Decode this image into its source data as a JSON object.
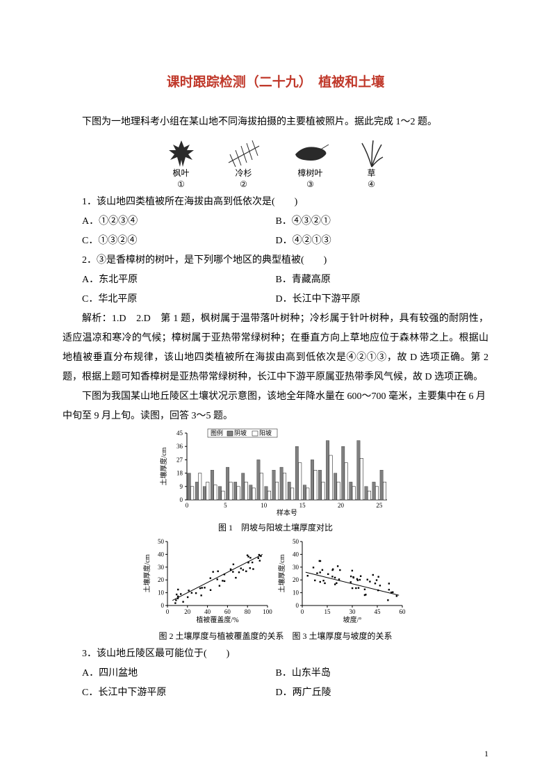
{
  "title": "课时跟踪检测（二十九）　植被和土壤",
  "intro1": "下图为一地理科考小组在某山地不同海拔拍摄的主要植被照片。据此完成 1～2 题。",
  "plants": [
    {
      "name": "枫叶",
      "num": "①"
    },
    {
      "name": "冷杉",
      "num": "②"
    },
    {
      "name": "樟树叶",
      "num": "③"
    },
    {
      "name": "草",
      "num": "④"
    }
  ],
  "q1": {
    "stem": "1．该山地四类植被所在海拔由高到低依次是(　　)",
    "A": "A．①②③④",
    "B": "B．④③②①",
    "C": "C．①③②④",
    "D": "D．④②①③"
  },
  "q2": {
    "stem": "2．③是香樟树的树叶，是下列哪个地区的典型植被(　　)",
    "A": "A．东北平原",
    "B": "B．青藏高原",
    "C": "C．华北平原",
    "D": "D．长江中下游平原"
  },
  "analysis": "解析：1.D　2.D　第 1 题，枫树属于温带落叶树种；冷杉属于针叶树种，具有较强的耐阴性，适应温凉和寒冷的气候；樟树属于亚热带常绿树种；在垂直方向上草地应位于森林带之上。根据山地植被垂直分布规律，该山地四类植被所在海拔由高到低依次是④②①③，故 D 选项正确。第 2 题，根据上题可知香樟树是亚热带常绿树种，长江中下游平原属亚热带季风气候，故 D 选项正确。",
  "intro2": "下图为我国某山地丘陵区土壤状况示意图，该地全年降水量在 600～700 毫米，主要集中在 6 月中旬至 9 月上旬。读图，回答 3～5 题。",
  "chart1": {
    "type": "bar",
    "title": "图 1　阴坡与阳坡土壤厚度对比",
    "legend": [
      "阴坡",
      "阳坡"
    ],
    "legend_colors": [
      "#7a7a7a",
      "#ffffff"
    ],
    "border_color": "#000000",
    "xlabel": "样本号",
    "ylabel": "土壤厚度/cm",
    "xticks": [
      0,
      5,
      10,
      15,
      20,
      25
    ],
    "yticks": [
      0,
      9,
      18,
      27,
      36,
      45
    ],
    "series": {
      "yin": [
        18,
        12,
        9,
        20,
        9,
        22,
        12,
        18,
        10,
        27,
        9,
        20,
        22,
        12,
        36,
        10,
        27,
        20,
        40,
        18,
        36,
        12,
        40,
        9,
        12,
        20
      ],
      "yang": [
        9,
        18,
        12,
        10,
        6,
        12,
        9,
        12,
        8,
        18,
        6,
        12,
        18,
        8,
        25,
        8,
        20,
        12,
        30,
        12,
        25,
        9,
        28,
        6,
        9,
        12
      ]
    },
    "bar_color_yin": "#808080",
    "bar_color_yang": "#ffffff",
    "background_color": "#ffffff",
    "axis_color": "#000000",
    "label_fontsize": 10
  },
  "chart2": {
    "type": "scatter",
    "title": "图 2　土壤厚度与植被覆盖度的关系",
    "xlabel": "植被覆盖度/%",
    "ylabel": "土壤厚度/cm",
    "xlim": [
      0,
      100
    ],
    "xticks": [
      0,
      20,
      40,
      60,
      80,
      100
    ],
    "ylim": [
      0,
      50
    ],
    "yticks": [
      0,
      10,
      20,
      30,
      40,
      50
    ],
    "marker_color": "#000000",
    "trend": "positive",
    "axis_color": "#000000",
    "label_fontsize": 10
  },
  "chart3": {
    "type": "scatter",
    "title": "图 3　土壤厚度与坡度的关系",
    "xlabel": "坡度/°",
    "ylabel": "土壤厚度/cm",
    "xlim": [
      0,
      60
    ],
    "xticks": [
      0,
      15,
      30,
      45,
      60
    ],
    "ylim": [
      0,
      50
    ],
    "yticks": [
      0,
      10,
      20,
      30,
      40,
      50
    ],
    "marker_color": "#000000",
    "trend": "negative",
    "axis_color": "#000000",
    "label_fontsize": 10
  },
  "chart_row_caption": "图 2 土壤厚度与植被覆盖度的关系　图 3 土壤厚度与坡度的关系",
  "q3": {
    "stem": "3．该山地丘陵区最可能位于(　　)",
    "A": "A．四川盆地",
    "B": "B．山东半岛",
    "C": "C．长江中下游平原",
    "D": "D．两广丘陵"
  },
  "pagenum": "1"
}
